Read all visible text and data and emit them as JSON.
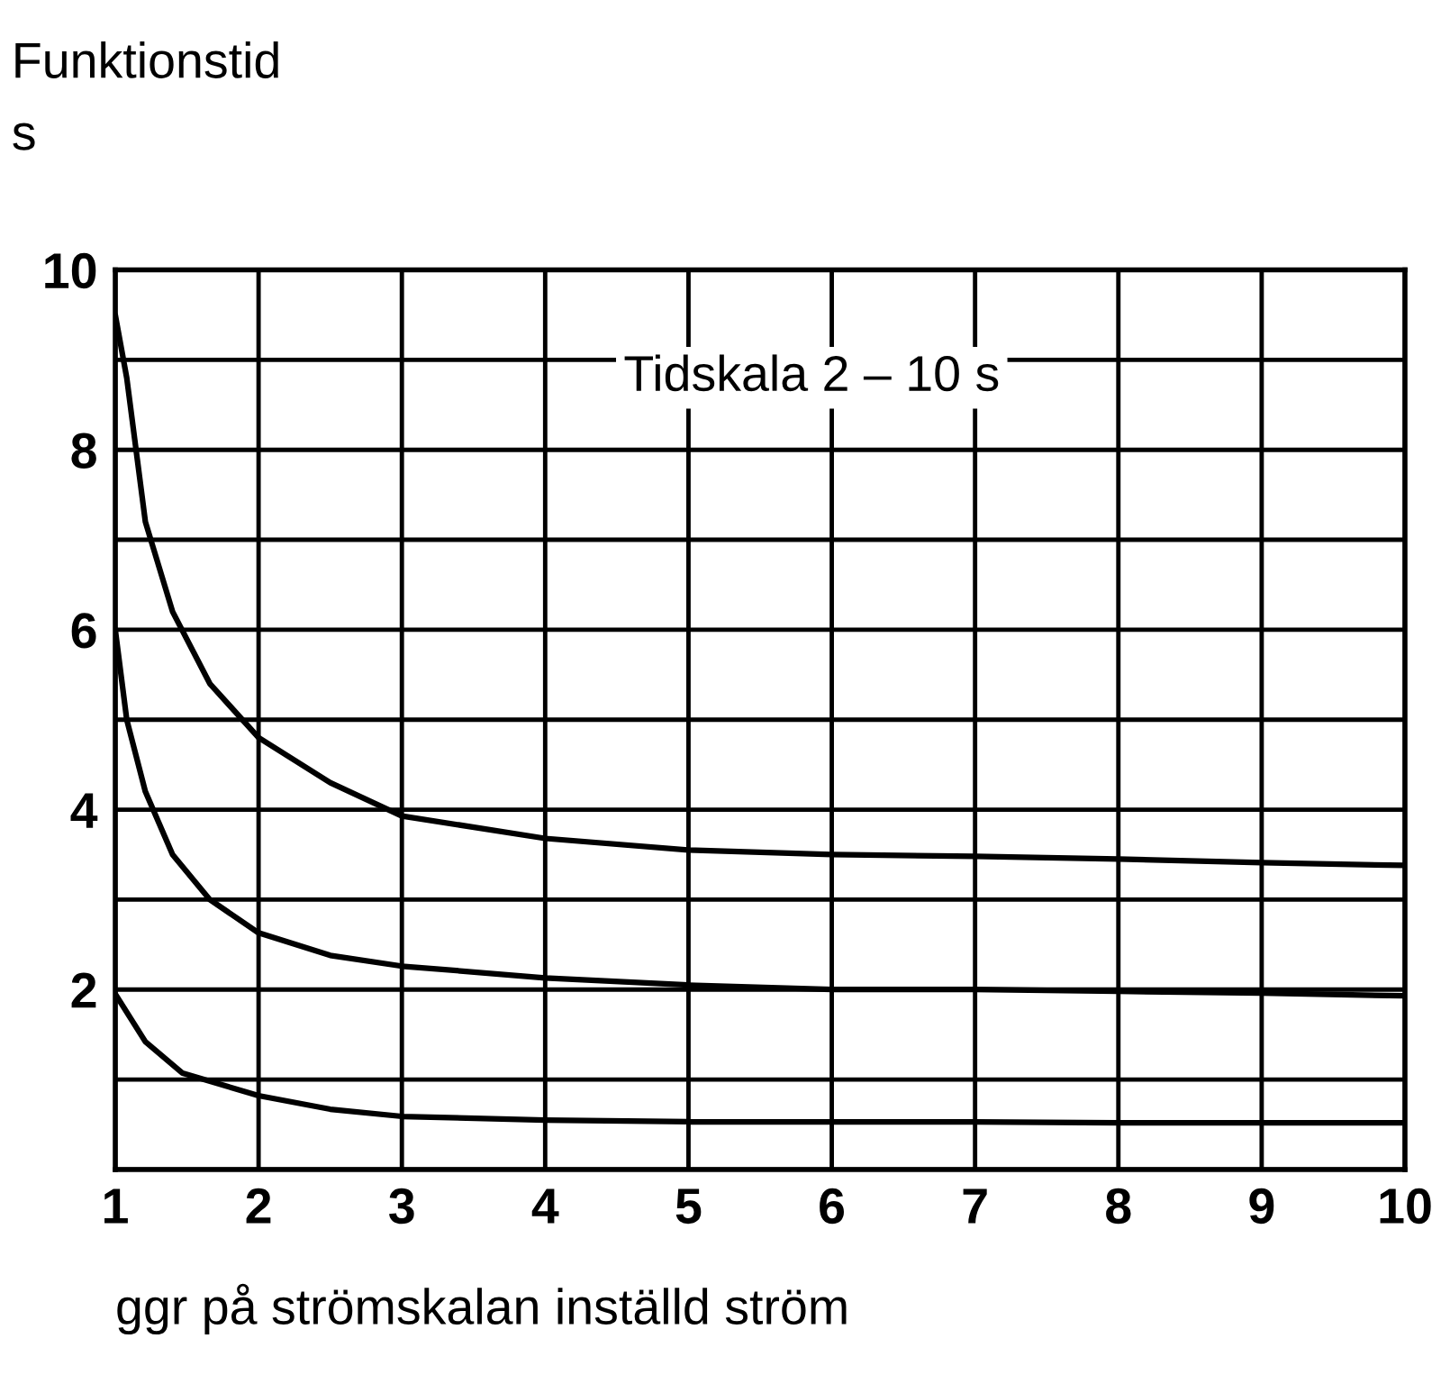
{
  "chart_data": {
    "type": "line",
    "ylabel": "Funktionstid\ns",
    "xlabel": "ggr på strömskalan inställd ström",
    "annotations": [
      "Tidskala 2 – 10 s"
    ],
    "series": [
      {
        "color": "#000000",
        "x": [
          1,
          1.08,
          1.21,
          1.4,
          1.66,
          2,
          2.5,
          3,
          4,
          5,
          6,
          7,
          8,
          9,
          10
        ],
        "values": [
          9.5,
          8.8,
          7.2,
          6.2,
          5.4,
          4.8,
          4.3,
          3.93,
          3.68,
          3.55,
          3.5,
          3.48,
          3.45,
          3.41,
          3.38
        ]
      },
      {
        "color": "#000000",
        "x": [
          1,
          1.08,
          1.21,
          1.4,
          1.66,
          2,
          2.5,
          3,
          4,
          5,
          6,
          7,
          8,
          9,
          10
        ],
        "values": [
          6.0,
          5.0,
          4.2,
          3.5,
          3.0,
          2.63,
          2.38,
          2.26,
          2.13,
          2.05,
          2.0,
          2.0,
          1.98,
          1.96,
          1.93
        ]
      },
      {
        "color": "#000000",
        "x": [
          1,
          1.21,
          1.47,
          2,
          2.5,
          3,
          4,
          5,
          6,
          7,
          8,
          9,
          10
        ],
        "values": [
          1.95,
          1.42,
          1.07,
          0.82,
          0.67,
          0.59,
          0.55,
          0.53,
          0.53,
          0.53,
          0.52,
          0.52,
          0.52
        ]
      }
    ],
    "xlim": [
      1,
      10
    ],
    "xticks": [
      1,
      2,
      3,
      4,
      5,
      6,
      7,
      8,
      9,
      10
    ],
    "ylim": [
      0,
      10
    ],
    "yticks": [
      {
        "value": 0,
        "label": null
      },
      {
        "value": 1,
        "label": null
      },
      2,
      {
        "value": 3,
        "label": null
      },
      4,
      {
        "value": 5,
        "label": null
      },
      6,
      {
        "value": 7,
        "label": null
      },
      8,
      {
        "value": 9,
        "label": null
      },
      10
    ],
    "grid": true,
    "marker": "none",
    "line_style": "solid"
  }
}
